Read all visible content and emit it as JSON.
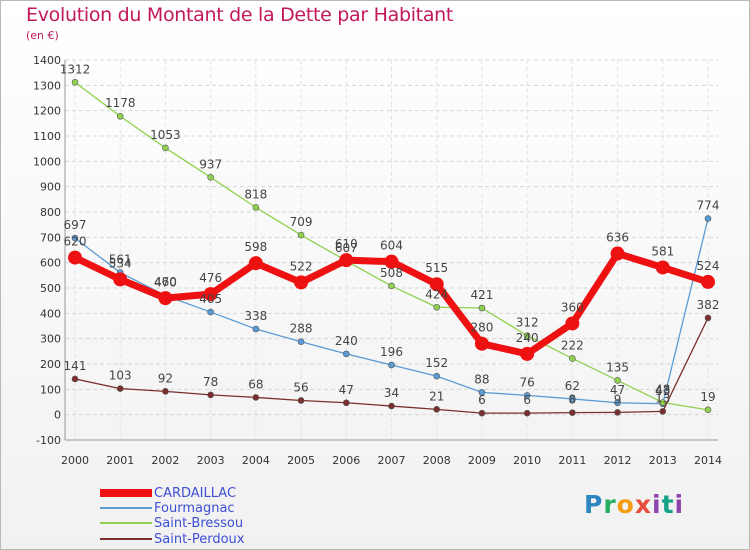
{
  "title": "Evolution du Montant de la Dette par Habitant",
  "subtitle": "(en €)",
  "logo": "Proxiti",
  "chart_data": {
    "type": "line",
    "title": "Evolution du Montant de la Dette par Habitant",
    "subtitle": "(en €)",
    "xlabel": "",
    "ylabel": "",
    "x": [
      "2000",
      "2001",
      "2002",
      "2003",
      "2004",
      "2005",
      "2006",
      "2007",
      "2008",
      "2009",
      "2010",
      "2011",
      "2012",
      "2013",
      "2014"
    ],
    "ylim": [
      -100,
      1400
    ],
    "yticks": [
      -100,
      0,
      100,
      200,
      300,
      400,
      500,
      600,
      700,
      800,
      900,
      1000,
      1100,
      1200,
      1300,
      1400
    ],
    "grid": true,
    "legend_position": "bottom-left",
    "series": [
      {
        "name": "CARDAILLAC",
        "color": "#ee1111",
        "values": [
          620,
          534,
          460,
          476,
          598,
          522,
          610,
          604,
          515,
          280,
          240,
          360,
          636,
          581,
          524
        ]
      },
      {
        "name": "Fourmagnac",
        "color": "#5b9bd5",
        "values": [
          697,
          561,
          470,
          405,
          338,
          288,
          240,
          196,
          152,
          88,
          76,
          62,
          47,
          43,
          774
        ]
      },
      {
        "name": "Saint-Bressou",
        "color": "#8fd14f",
        "values": [
          1312,
          1178,
          1053,
          937,
          818,
          709,
          607,
          508,
          424,
          421,
          312,
          222,
          135,
          48,
          19
        ]
      },
      {
        "name": "Saint-Perdoux",
        "color": "#7b2e2e",
        "values": [
          141,
          103,
          92,
          78,
          68,
          56,
          47,
          34,
          21,
          6,
          6,
          8,
          9,
          13,
          382
        ]
      }
    ]
  }
}
